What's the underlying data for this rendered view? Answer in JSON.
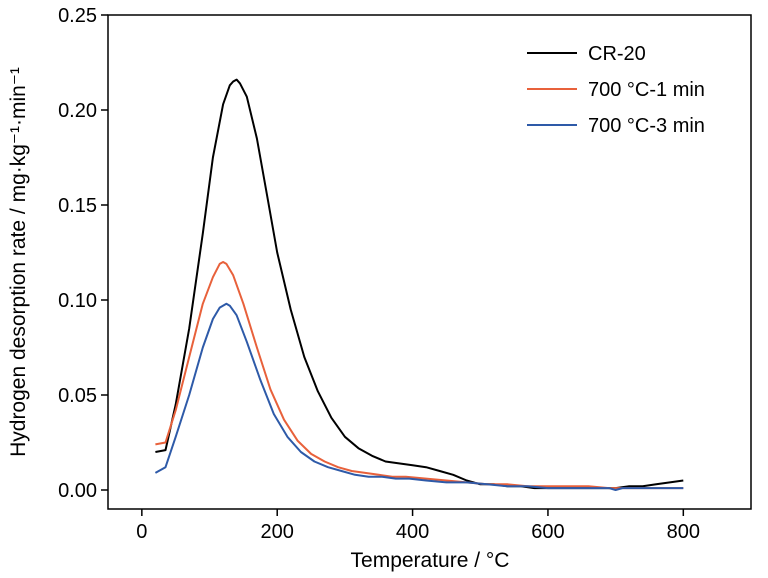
{
  "chart_data": {
    "type": "line",
    "xlabel": "Temperature / °C",
    "ylabel": "Hydrogen desorption rate / mg·kg⁻¹·min⁻¹",
    "xlim": [
      -50,
      900
    ],
    "ylim": [
      -0.01,
      0.25
    ],
    "xticks": [
      "0",
      "200",
      "400",
      "600",
      "800"
    ],
    "yticks": [
      "0.00",
      "0.05",
      "0.10",
      "0.15",
      "0.20",
      "0.25"
    ],
    "xtick_values": [
      0,
      200,
      400,
      600,
      800
    ],
    "ytick_values": [
      0,
      0.05,
      0.1,
      0.15,
      0.2,
      0.25
    ],
    "grid": false,
    "legend_position": "top-right",
    "series": [
      {
        "name": "CR-20",
        "color": "#000000",
        "x": [
          20,
          35,
          50,
          70,
          90,
          105,
          120,
          130,
          135,
          140,
          145,
          155,
          170,
          185,
          200,
          220,
          240,
          260,
          280,
          300,
          320,
          340,
          360,
          380,
          400,
          420,
          440,
          460,
          480,
          500,
          520,
          540,
          560,
          580,
          600,
          620,
          640,
          660,
          680,
          700,
          720,
          740,
          760,
          780,
          800
        ],
        "y": [
          0.02,
          0.021,
          0.045,
          0.085,
          0.135,
          0.175,
          0.203,
          0.213,
          0.215,
          0.216,
          0.214,
          0.207,
          0.185,
          0.155,
          0.125,
          0.095,
          0.07,
          0.052,
          0.038,
          0.028,
          0.022,
          0.018,
          0.015,
          0.014,
          0.013,
          0.012,
          0.01,
          0.008,
          0.005,
          0.003,
          0.003,
          0.002,
          0.002,
          0.001,
          0.001,
          0.001,
          0.001,
          0.001,
          0.001,
          0.001,
          0.002,
          0.002,
          0.003,
          0.004,
          0.005
        ]
      },
      {
        "name": "700 °C-1 min",
        "color": "#e8613b",
        "x": [
          20,
          35,
          50,
          70,
          90,
          105,
          115,
          120,
          125,
          135,
          150,
          170,
          190,
          210,
          230,
          250,
          270,
          290,
          310,
          330,
          350,
          370,
          390,
          420,
          450,
          480,
          510,
          540,
          570,
          600,
          630,
          660,
          690,
          720,
          750,
          780,
          800
        ],
        "y": [
          0.024,
          0.025,
          0.042,
          0.07,
          0.098,
          0.112,
          0.119,
          0.12,
          0.119,
          0.113,
          0.098,
          0.075,
          0.053,
          0.037,
          0.026,
          0.019,
          0.015,
          0.012,
          0.01,
          0.009,
          0.008,
          0.007,
          0.007,
          0.006,
          0.005,
          0.004,
          0.003,
          0.003,
          0.002,
          0.002,
          0.002,
          0.002,
          0.001,
          0.001,
          0.001,
          0.001,
          0.001
        ]
      },
      {
        "name": "700 °C-3 min",
        "color": "#2e5aa8",
        "x": [
          20,
          35,
          50,
          70,
          90,
          105,
          115,
          125,
          130,
          140,
          155,
          175,
          195,
          215,
          235,
          255,
          275,
          295,
          315,
          335,
          355,
          375,
          395,
          420,
          450,
          480,
          510,
          540,
          570,
          600,
          630,
          660,
          690,
          700,
          710,
          740,
          770,
          800
        ],
        "y": [
          0.009,
          0.012,
          0.028,
          0.05,
          0.075,
          0.09,
          0.096,
          0.098,
          0.097,
          0.092,
          0.078,
          0.058,
          0.04,
          0.028,
          0.02,
          0.015,
          0.012,
          0.01,
          0.008,
          0.007,
          0.007,
          0.006,
          0.006,
          0.005,
          0.004,
          0.004,
          0.003,
          0.002,
          0.002,
          0.001,
          0.001,
          0.001,
          0.001,
          0.0,
          0.001,
          0.001,
          0.001,
          0.001
        ]
      }
    ]
  }
}
